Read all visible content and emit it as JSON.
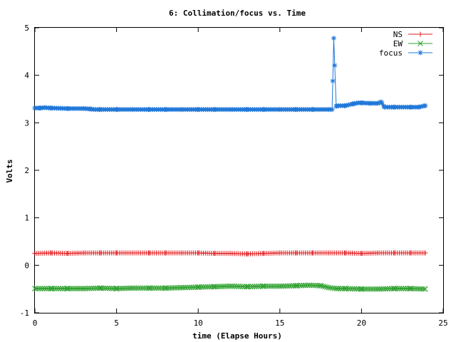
{
  "chart_data": {
    "type": "line",
    "title": "6: Collimation/focus vs. Time",
    "xlabel": "time (Elapse Hours)",
    "ylabel": "Volts",
    "xlim": [
      0,
      25
    ],
    "ylim": [
      -1,
      5
    ],
    "xticks": [
      0,
      5,
      10,
      15,
      20,
      25
    ],
    "yticks": [
      -1,
      0,
      1,
      2,
      3,
      4,
      5
    ],
    "grid": false,
    "legend_position": "top-right",
    "series": [
      {
        "name": "NS",
        "color": "#e41a1c",
        "marker": "plus",
        "x": [
          0,
          1,
          2,
          3,
          4,
          5,
          6,
          7,
          8,
          9,
          10,
          11,
          12,
          13,
          14,
          15,
          16,
          17,
          18,
          19,
          20,
          21,
          22,
          23,
          23.9
        ],
        "y": [
          0.25,
          0.26,
          0.25,
          0.26,
          0.26,
          0.26,
          0.26,
          0.26,
          0.26,
          0.26,
          0.26,
          0.25,
          0.25,
          0.24,
          0.25,
          0.26,
          0.26,
          0.26,
          0.26,
          0.26,
          0.25,
          0.26,
          0.26,
          0.26,
          0.26
        ]
      },
      {
        "name": "EW",
        "color": "#2ca02c",
        "marker": "x",
        "x": [
          0,
          1,
          2,
          3,
          4,
          5,
          6,
          7,
          8,
          9,
          10,
          11,
          12,
          13,
          14,
          15,
          16,
          16.8,
          17.5,
          18,
          18.5,
          19,
          20,
          21,
          22,
          23,
          23.9
        ],
        "y": [
          -0.49,
          -0.49,
          -0.49,
          -0.49,
          -0.48,
          -0.49,
          -0.48,
          -0.48,
          -0.48,
          -0.47,
          -0.46,
          -0.45,
          -0.44,
          -0.45,
          -0.44,
          -0.44,
          -0.43,
          -0.42,
          -0.43,
          -0.47,
          -0.49,
          -0.49,
          -0.5,
          -0.5,
          -0.49,
          -0.49,
          -0.5
        ]
      },
      {
        "name": "focus",
        "color": "#1f77d8",
        "marker": "star",
        "x": [
          0,
          0.3,
          0.6,
          1,
          2,
          3,
          3.4,
          3.6,
          4,
          5,
          6,
          7,
          8,
          9,
          10,
          11,
          12,
          13,
          14,
          15,
          16,
          17,
          18,
          18.2,
          18.3,
          18.45,
          18.6,
          19,
          19.5,
          19.8,
          20,
          20.5,
          21,
          21.2,
          21.4,
          22,
          23,
          23.5,
          23.9
        ],
        "y": [
          3.31,
          3.31,
          3.32,
          3.31,
          3.3,
          3.3,
          3.29,
          3.28,
          3.28,
          3.28,
          3.28,
          3.28,
          3.28,
          3.28,
          3.28,
          3.28,
          3.28,
          3.28,
          3.28,
          3.28,
          3.28,
          3.28,
          3.28,
          3.28,
          4.78,
          3.35,
          3.36,
          3.36,
          3.4,
          3.42,
          3.42,
          3.41,
          3.41,
          3.44,
          3.33,
          3.33,
          3.33,
          3.33,
          3.36
        ]
      }
    ]
  }
}
